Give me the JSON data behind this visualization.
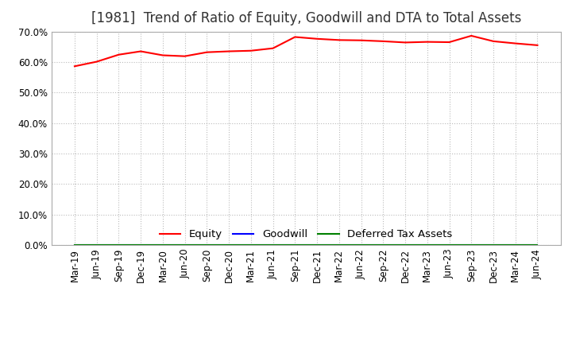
{
  "title": "[1981]  Trend of Ratio of Equity, Goodwill and DTA to Total Assets",
  "x_labels": [
    "Mar-19",
    "Jun-19",
    "Sep-19",
    "Dec-19",
    "Mar-20",
    "Jun-20",
    "Sep-20",
    "Dec-20",
    "Mar-21",
    "Jun-21",
    "Sep-21",
    "Dec-21",
    "Mar-22",
    "Jun-22",
    "Sep-22",
    "Dec-22",
    "Mar-23",
    "Jun-23",
    "Sep-23",
    "Dec-23",
    "Mar-24",
    "Jun-24"
  ],
  "equity": [
    0.586,
    0.601,
    0.624,
    0.635,
    0.622,
    0.619,
    0.632,
    0.635,
    0.637,
    0.645,
    0.682,
    0.676,
    0.672,
    0.671,
    0.668,
    0.664,
    0.666,
    0.665,
    0.686,
    0.668,
    0.661,
    0.655
  ],
  "goodwill": [
    0.0,
    0.0,
    0.0,
    0.0,
    0.0,
    0.0,
    0.0,
    0.0,
    0.0,
    0.0,
    0.0,
    0.0,
    0.0,
    0.0,
    0.0,
    0.0,
    0.0,
    0.0,
    0.0,
    0.0,
    0.0,
    0.0
  ],
  "dta": [
    0.0,
    0.0,
    0.0,
    0.0,
    0.0,
    0.0,
    0.0,
    0.0,
    0.0,
    0.0,
    0.0,
    0.0,
    0.0,
    0.0,
    0.0,
    0.0,
    0.0,
    0.0,
    0.0,
    0.0,
    0.0,
    0.0
  ],
  "equity_color": "#FF0000",
  "goodwill_color": "#0000FF",
  "dta_color": "#008000",
  "ylim": [
    0.0,
    0.7
  ],
  "yticks": [
    0.0,
    0.1,
    0.2,
    0.3,
    0.4,
    0.5,
    0.6,
    0.7
  ],
  "background_color": "#FFFFFF",
  "plot_bg_color": "#FFFFFF",
  "grid_color": "#BBBBBB",
  "title_fontsize": 12,
  "title_color": "#333333",
  "axis_fontsize": 8.5,
  "legend_fontsize": 9.5
}
